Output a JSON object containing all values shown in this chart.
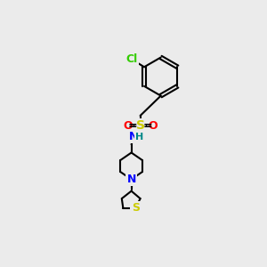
{
  "bg_color": "#ebebeb",
  "bond_color": "#000000",
  "bond_lw": 1.5,
  "atom_colors": {
    "Cl": "#33cc00",
    "S": "#cccc00",
    "O": "#ff0000",
    "N": "#0000ff",
    "H": "#008888",
    "C": "#000000"
  },
  "font_size": 9,
  "font_size_H": 8
}
